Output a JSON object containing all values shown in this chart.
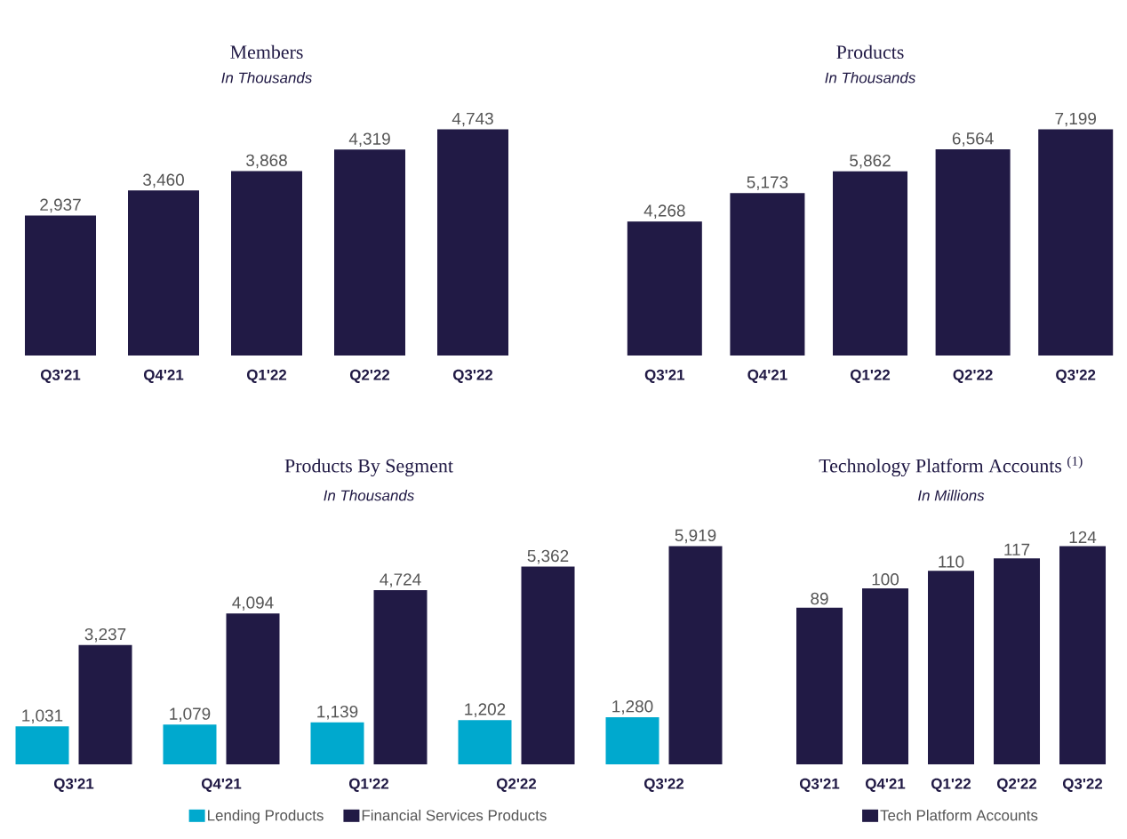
{
  "chart_data": [
    {
      "type": "bar",
      "title": "Members",
      "subtitle": "In Thousands",
      "categories": [
        "Q3'21",
        "Q4'21",
        "Q1'22",
        "Q2'22",
        "Q3'22"
      ],
      "values": [
        2937,
        3460,
        3868,
        4319,
        4743
      ],
      "value_labels": [
        "2,937",
        "3,460",
        "3,868",
        "4,319",
        "4,743"
      ],
      "color": "#211a45"
    },
    {
      "type": "bar",
      "title": "Products",
      "subtitle": "In Thousands",
      "categories": [
        "Q3'21",
        "Q4'21",
        "Q1'22",
        "Q2'22",
        "Q3'22"
      ],
      "values": [
        4268,
        5173,
        5862,
        6564,
        7199
      ],
      "value_labels": [
        "4,268",
        "5,173",
        "5,862",
        "6,564",
        "7,199"
      ],
      "color": "#211a45"
    },
    {
      "type": "bar",
      "title": "Products By Segment",
      "subtitle": "In Thousands",
      "categories": [
        "Q3'21",
        "Q4'21",
        "Q1'22",
        "Q2'22",
        "Q3'22"
      ],
      "series": [
        {
          "name": "Lending Products",
          "color": "#00a9ce",
          "values": [
            1031,
            1079,
            1139,
            1202,
            1280
          ],
          "value_labels": [
            "1,031",
            "1,079",
            "1,139",
            "1,202",
            "1,280"
          ]
        },
        {
          "name": "Financial Services Products",
          "color": "#211a45",
          "values": [
            3237,
            4094,
            4724,
            5362,
            5919
          ],
          "value_labels": [
            "3,237",
            "4,094",
            "4,724",
            "5,362",
            "5,919"
          ]
        }
      ],
      "legend": "bottom"
    },
    {
      "type": "bar",
      "title": "Technology Platform Accounts $^{(1)}$",
      "subtitle": "In Millions",
      "categories": [
        "Q3'21",
        "Q4'21",
        "Q1'22",
        "Q2'22",
        "Q3'22"
      ],
      "series": [
        {
          "name": "Tech Platform Accounts",
          "color": "#211a45",
          "values": [
            89,
            100,
            110,
            117,
            124
          ]
        }
      ],
      "legend": "bottom",
      "data_labels": true
    }
  ]
}
